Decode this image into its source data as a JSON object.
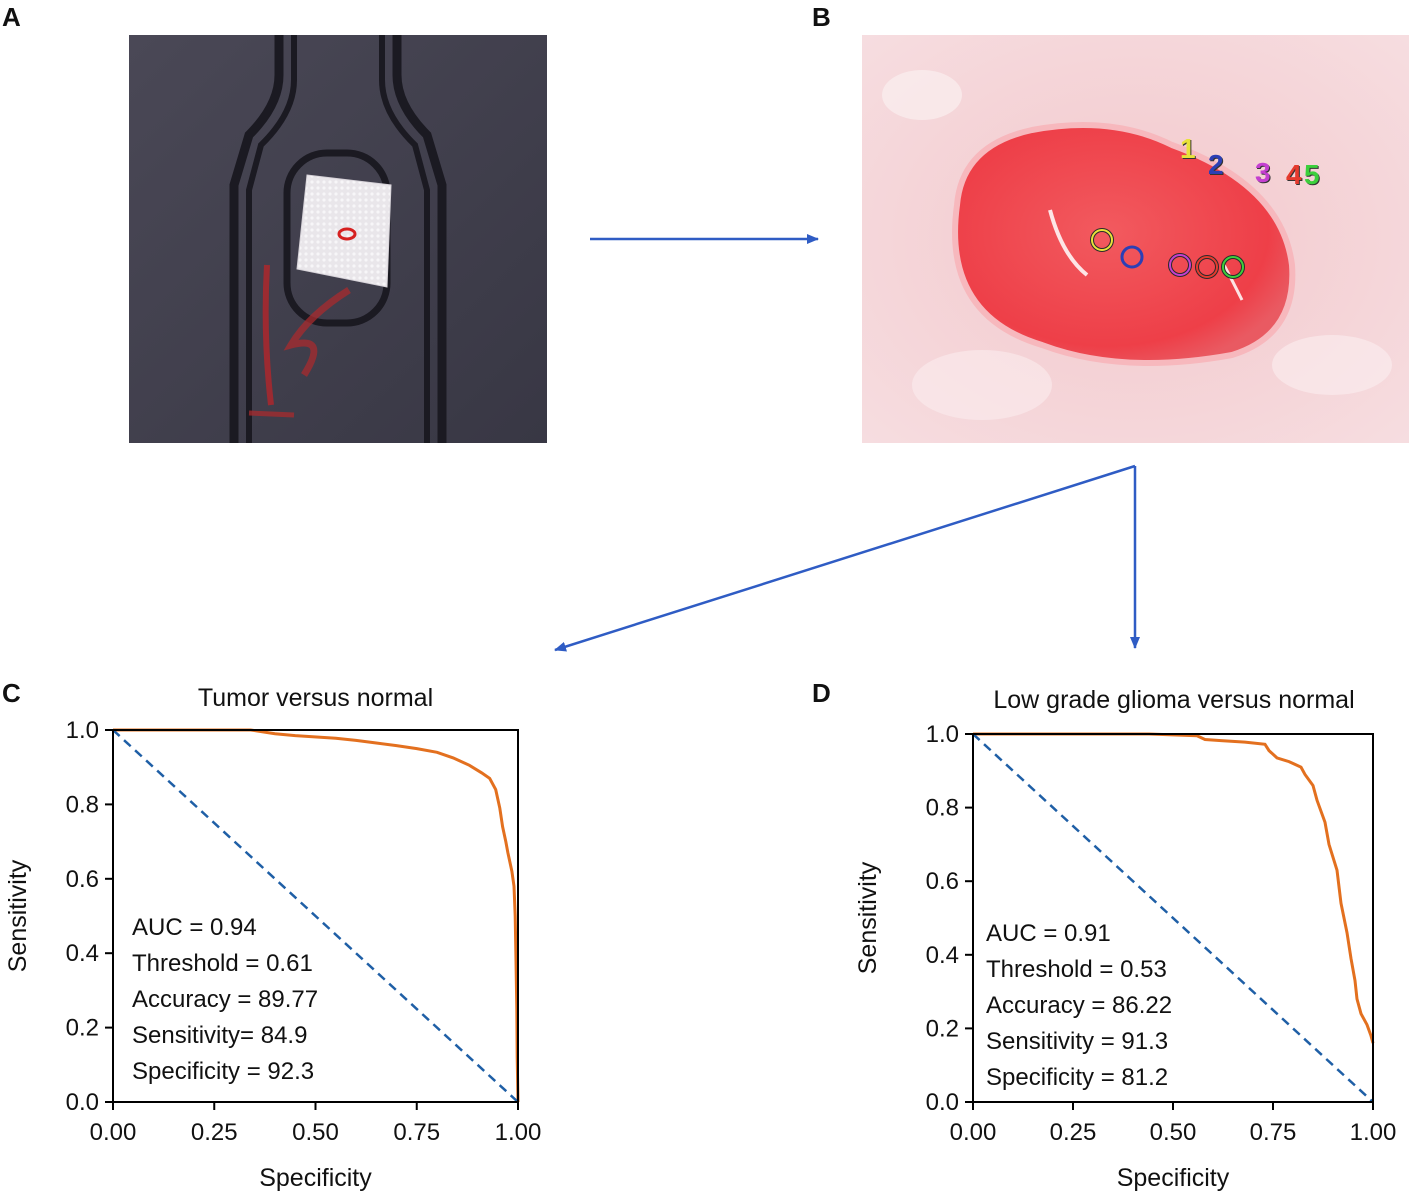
{
  "panels": {
    "a": {
      "letter": "A"
    },
    "b": {
      "letter": "B",
      "point_labels": [
        "1",
        "2",
        "3",
        "4",
        "5"
      ],
      "point_colors": [
        "#e8e23a",
        "#2c3fb5",
        "#c43fd0",
        "#e53a2e",
        "#3ccf3c"
      ]
    },
    "c": {
      "letter": "C"
    },
    "d": {
      "letter": "D"
    }
  },
  "colors": {
    "arrow": "#2f5cc4",
    "roc_curve": "#e3701f",
    "diagonal": "#1f5fa6"
  },
  "chart_data": [
    {
      "type": "line",
      "title": "Tumor versus normal",
      "xlabel": "Specificity",
      "ylabel": "Sensitivity",
      "xlim": [
        0.0,
        1.0
      ],
      "ylim": [
        0.0,
        1.0
      ],
      "xticks": [
        "0.00",
        "0.25",
        "0.50",
        "0.75",
        "1.00"
      ],
      "yticks": [
        "0.0",
        "0.2",
        "0.4",
        "0.6",
        "0.8",
        "1.0"
      ],
      "grid": false,
      "series": [
        {
          "points": [
            [
              0.0,
              1.0
            ],
            [
              0.34,
              1.0
            ],
            [
              0.4,
              0.99
            ],
            [
              0.45,
              0.985
            ],
            [
              0.55,
              0.978
            ],
            [
              0.6,
              0.972
            ],
            [
              0.65,
              0.965
            ],
            [
              0.7,
              0.958
            ],
            [
              0.75,
              0.95
            ],
            [
              0.8,
              0.94
            ],
            [
              0.84,
              0.925
            ],
            [
              0.88,
              0.905
            ],
            [
              0.91,
              0.885
            ],
            [
              0.93,
              0.87
            ],
            [
              0.945,
              0.84
            ],
            [
              0.955,
              0.79
            ],
            [
              0.962,
              0.74
            ],
            [
              0.97,
              0.7
            ],
            [
              0.975,
              0.67
            ],
            [
              0.985,
              0.62
            ],
            [
              0.99,
              0.58
            ],
            [
              0.993,
              0.5
            ],
            [
              0.995,
              0.38
            ],
            [
              0.997,
              0.25
            ],
            [
              0.998,
              0.12
            ],
            [
              1.0,
              0.0
            ]
          ]
        },
        {
          "points": [
            [
              0.0,
              1.0
            ],
            [
              1.0,
              0.0
            ]
          ],
          "style": "dashed"
        }
      ],
      "annotations": [
        "AUC = 0.94",
        "Threshold = 0.61",
        "Accuracy = 89.77",
        "Sensitivity= 84.9",
        "Specificity = 92.3"
      ]
    },
    {
      "type": "line",
      "title": "Low grade glioma versus normal",
      "xlabel": "Specificity",
      "ylabel": "Sensitivity",
      "xlim": [
        0.0,
        1.0
      ],
      "ylim": [
        0.0,
        1.0
      ],
      "xticks": [
        "0.00",
        "0.25",
        "0.50",
        "0.75",
        "1.00"
      ],
      "yticks": [
        "0.0",
        "0.2",
        "0.4",
        "0.6",
        "0.8",
        "1.0"
      ],
      "grid": false,
      "series": [
        {
          "points": [
            [
              0.0,
              1.0
            ],
            [
              0.44,
              1.0
            ],
            [
              0.56,
              0.995
            ],
            [
              0.58,
              0.985
            ],
            [
              0.62,
              0.982
            ],
            [
              0.68,
              0.978
            ],
            [
              0.73,
              0.972
            ],
            [
              0.74,
              0.955
            ],
            [
              0.76,
              0.935
            ],
            [
              0.79,
              0.925
            ],
            [
              0.82,
              0.91
            ],
            [
              0.83,
              0.89
            ],
            [
              0.85,
              0.86
            ],
            [
              0.86,
              0.82
            ],
            [
              0.88,
              0.76
            ],
            [
              0.89,
              0.7
            ],
            [
              0.91,
              0.63
            ],
            [
              0.92,
              0.54
            ],
            [
              0.935,
              0.46
            ],
            [
              0.945,
              0.39
            ],
            [
              0.955,
              0.33
            ],
            [
              0.96,
              0.28
            ],
            [
              0.97,
              0.24
            ],
            [
              0.985,
              0.21
            ],
            [
              0.995,
              0.18
            ],
            [
              1.0,
              0.16
            ]
          ]
        },
        {
          "points": [
            [
              0.0,
              1.0
            ],
            [
              1.0,
              0.0
            ]
          ],
          "style": "dashed"
        }
      ],
      "annotations": [
        "AUC = 0.91",
        "Threshold = 0.53",
        "Accuracy = 86.22",
        "Sensitivity = 91.3",
        "Specificity = 81.2"
      ]
    }
  ]
}
